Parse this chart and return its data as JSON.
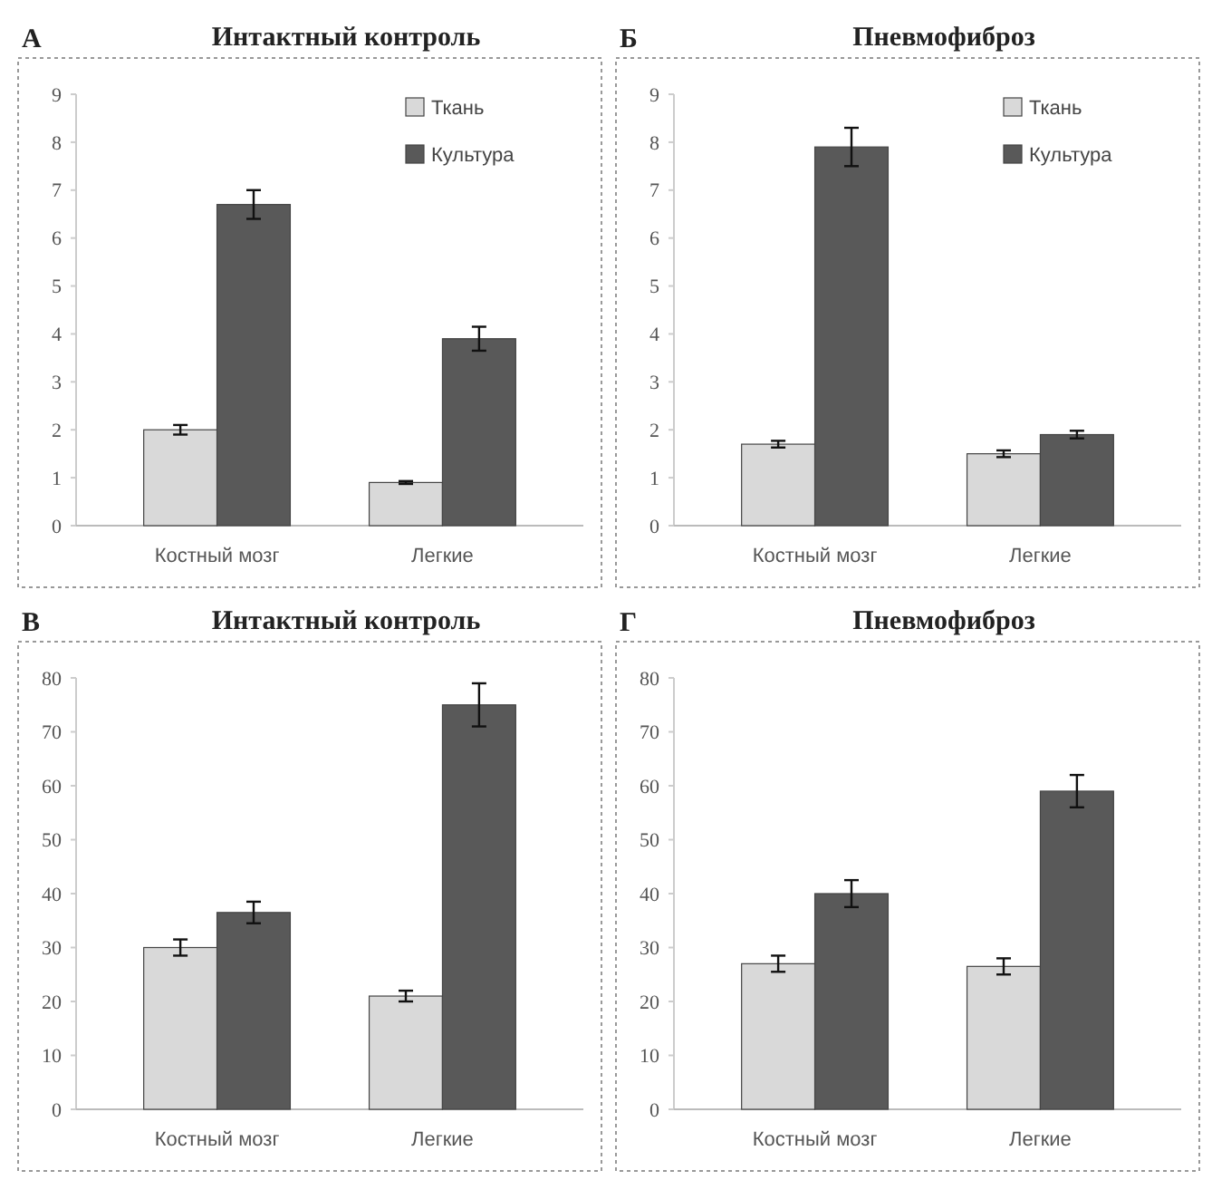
{
  "chart_data": [
    {
      "type": "bar",
      "title": "Интактный контроль",
      "annotations": [
        "А"
      ],
      "categories": [
        "Костный мозг",
        "Легкие"
      ],
      "ylim": [
        0,
        9
      ],
      "yticks": [
        0,
        1,
        2,
        3,
        4,
        5,
        6,
        7,
        8,
        9
      ],
      "legend": "top right",
      "series": [
        {
          "name": "Ткань",
          "color": "#d9d9d9",
          "values": [
            2.0,
            0.9
          ],
          "errors": [
            0.1,
            0.03
          ]
        },
        {
          "name": "Культура",
          "color": "#595959",
          "values": [
            6.7,
            3.9
          ],
          "errors": [
            0.3,
            0.25
          ]
        }
      ]
    },
    {
      "type": "bar",
      "title": "Пневмофиброз",
      "annotations": [
        "Б"
      ],
      "categories": [
        "Костный мозг",
        "Легкие"
      ],
      "ylim": [
        0,
        9
      ],
      "yticks": [
        0,
        1,
        2,
        3,
        4,
        5,
        6,
        7,
        8,
        9
      ],
      "legend": "top right",
      "series": [
        {
          "name": "Ткань",
          "color": "#d9d9d9",
          "values": [
            1.7,
            1.5
          ],
          "errors": [
            0.07,
            0.07
          ]
        },
        {
          "name": "Культура",
          "color": "#595959",
          "values": [
            7.9,
            1.9
          ],
          "errors": [
            0.4,
            0.08
          ]
        }
      ]
    },
    {
      "type": "bar",
      "title": "Интактный контроль",
      "annotations": [
        "В"
      ],
      "categories": [
        "Костный мозг",
        "Легкие"
      ],
      "ylim": [
        0,
        80
      ],
      "yticks": [
        0,
        10,
        20,
        30,
        40,
        50,
        60,
        70,
        80
      ],
      "series": [
        {
          "color": "#d9d9d9",
          "values": [
            30,
            21
          ],
          "errors": [
            1.5,
            1
          ]
        },
        {
          "color": "#595959",
          "values": [
            36.5,
            75
          ],
          "errors": [
            2,
            4
          ]
        }
      ]
    },
    {
      "type": "bar",
      "title": "Пневмофиброз",
      "annotations": [
        "Г"
      ],
      "categories": [
        "Костный мозг",
        "Легкие"
      ],
      "ylim": [
        0,
        80
      ],
      "yticks": [
        0,
        10,
        20,
        30,
        40,
        50,
        60,
        70,
        80
      ],
      "series": [
        {
          "color": "#d9d9d9",
          "values": [
            27,
            26.5
          ],
          "errors": [
            1.5,
            1.5
          ]
        },
        {
          "color": "#595959",
          "values": [
            40,
            59
          ],
          "errors": [
            2.5,
            3
          ]
        }
      ]
    }
  ]
}
